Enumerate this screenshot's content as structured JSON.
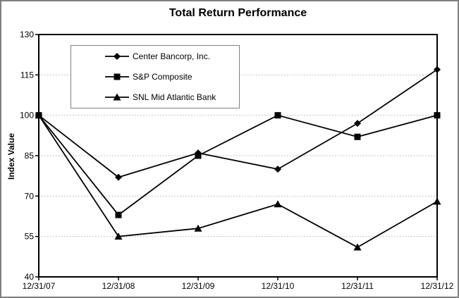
{
  "chart_data": {
    "type": "line",
    "title": "Total Return Performance",
    "ylabel": "Index Value",
    "xlabel": "",
    "categories": [
      "12/31/07",
      "12/31/08",
      "12/31/09",
      "12/31/10",
      "12/31/11",
      "12/31/12"
    ],
    "series": [
      {
        "name": "Center Bancorp, Inc.",
        "marker": "diamond",
        "values": [
          100,
          77,
          86,
          80,
          97,
          117
        ]
      },
      {
        "name": "S&P Composite",
        "marker": "square",
        "values": [
          100,
          63,
          85,
          100,
          92,
          100
        ]
      },
      {
        "name": "SNL Mid Atlantic Bank",
        "marker": "triangle",
        "values": [
          100,
          55,
          58,
          67,
          51,
          68
        ]
      }
    ],
    "ylim": [
      40,
      130
    ],
    "y_ticks": [
      40,
      55,
      70,
      85,
      100,
      115,
      130
    ],
    "gridlines": [
      55,
      70,
      85,
      100,
      115
    ],
    "grid": "horizontal-dotted",
    "legend_position": "top-left-inside",
    "colors": {
      "series": "#000000",
      "gridline": "#b4b4b4",
      "plot_border": "#000000",
      "frame_border": "#808080",
      "background": "#ffffff"
    }
  }
}
